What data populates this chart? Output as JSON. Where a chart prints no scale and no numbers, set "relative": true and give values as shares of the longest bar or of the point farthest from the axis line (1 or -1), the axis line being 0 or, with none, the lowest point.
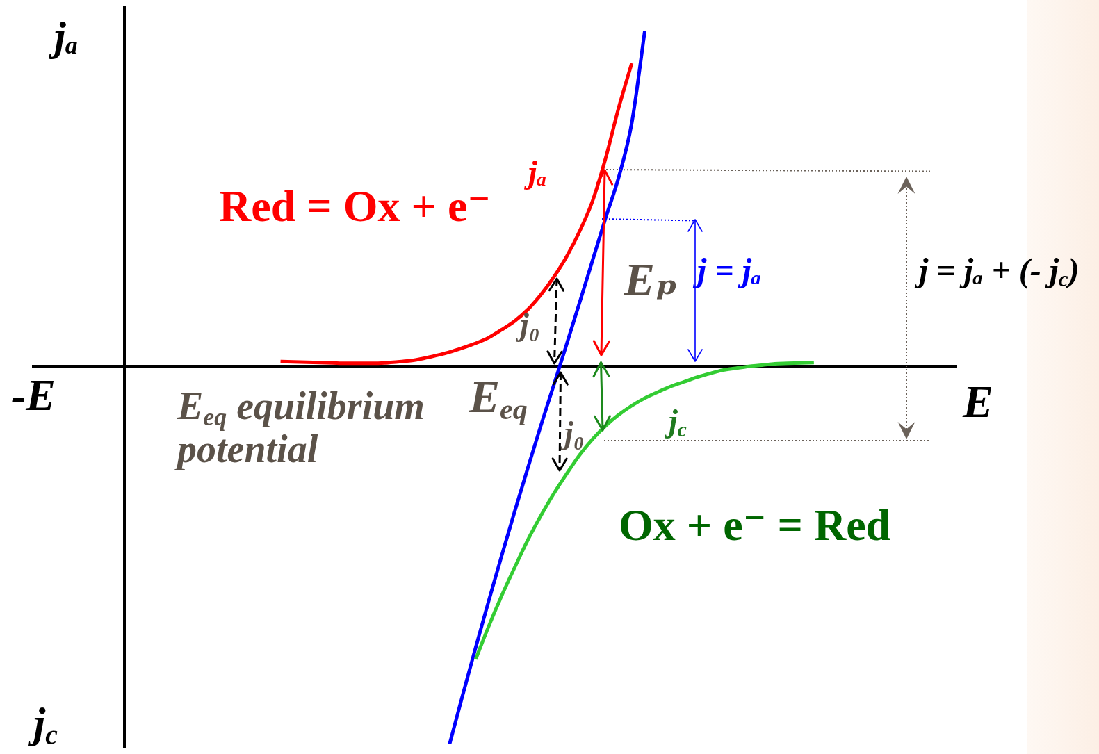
{
  "chart_data": {
    "type": "line",
    "relative": true,
    "xlabel": "E",
    "ylabel": "jₐ",
    "categories": [
      null,
      null,
      null,
      null,
      null,
      null,
      null,
      null,
      null,
      null,
      null,
      null,
      null,
      null,
      null,
      null,
      null,
      null,
      null,
      null,
      null,
      null,
      null,
      null,
      null,
      null,
      null,
      null,
      null,
      null,
      null,
      null,
      null,
      null,
      null,
      null,
      null,
      null,
      null,
      null,
      null,
      null,
      null,
      null,
      null,
      null,
      null,
      null,
      null,
      null,
      null,
      null,
      null,
      null,
      null,
      null,
      null,
      null,
      null,
      null,
      null,
      null,
      null,
      null,
      null,
      null,
      null,
      null,
      null,
      null,
      null,
      null
    ],
    "series": [
      {
        "color": "#ff0000",
        "values": [
          null,
          null,
          null,
          null,
          null,
          null,
          null,
          null,
          null,
          null,
          null,
          null,
          null,
          null,
          null,
          null,
          null,
          null,
          null,
          0.012,
          0.011,
          0.01,
          0.009,
          0.008,
          0.007,
          0.007,
          0.007,
          0.008,
          0.011,
          0.014,
          0.02,
          0.028,
          0.037,
          0.048,
          0.06,
          0.075,
          0.096,
          0.119,
          0.149,
          0.188,
          0.235,
          0.29,
          0.357,
          0.438,
          0.551,
          0.684,
          0.801,
          null,
          null,
          null,
          null,
          null,
          null,
          null,
          null,
          null,
          null,
          null,
          null,
          null,
          null,
          null,
          null,
          null,
          null,
          null,
          null,
          null,
          null,
          null,
          null,
          null
        ]
      },
      {
        "color": "#33cc33",
        "values": [
          null,
          null,
          null,
          null,
          null,
          null,
          null,
          null,
          null,
          null,
          null,
          null,
          null,
          null,
          null,
          null,
          null,
          null,
          null,
          null,
          null,
          null,
          null,
          null,
          null,
          null,
          null,
          null,
          null,
          null,
          null,
          null,
          null,
          null,
          -0.776,
          -0.689,
          -0.608,
          -0.533,
          -0.461,
          -0.397,
          -0.338,
          -0.285,
          -0.235,
          -0.193,
          -0.158,
          -0.129,
          -0.105,
          -0.085,
          -0.069,
          -0.054,
          -0.042,
          -0.03,
          -0.02,
          -0.011,
          -0.006,
          -0.001,
          0.002,
          0.006,
          0.007,
          0.008,
          0.009,
          null,
          null,
          null,
          null,
          null,
          null,
          null,
          null,
          null,
          null,
          null
        ]
      },
      {
        "color": "#0000ff",
        "values": [
          null,
          null,
          null,
          null,
          null,
          null,
          null,
          null,
          null,
          null,
          null,
          null,
          null,
          null,
          null,
          null,
          null,
          null,
          null,
          null,
          null,
          null,
          null,
          null,
          null,
          null,
          null,
          null,
          null,
          null,
          null,
          null,
          -1,
          -0.871,
          -0.745,
          -0.622,
          -0.502,
          -0.385,
          -0.271,
          -0.159,
          -0.051,
          0.058,
          0.169,
          0.281,
          0.393,
          0.5,
          0.643,
          0.886,
          null,
          null,
          null,
          null,
          null,
          null,
          null,
          null,
          null,
          null,
          null,
          null,
          null,
          null,
          null,
          null,
          null,
          null,
          null,
          null,
          null,
          null,
          null,
          null
        ]
      }
    ],
    "annotations": [
      "Red = Ox + e⁻",
      "Ox + e⁻ = Red",
      "jₐ",
      "j$_{c}$",
      "j = jₐ",
      "j = jₐ + (- j$_{c}$)",
      "Eₚ",
      "j₀",
      "j₀",
      "E$_{eq}$",
      "E$_{eq}$ equilibrium potential",
      "-E",
      "j$_{c}$"
    ],
    "grid": false,
    "legend": false,
    "marker": "none"
  }
}
